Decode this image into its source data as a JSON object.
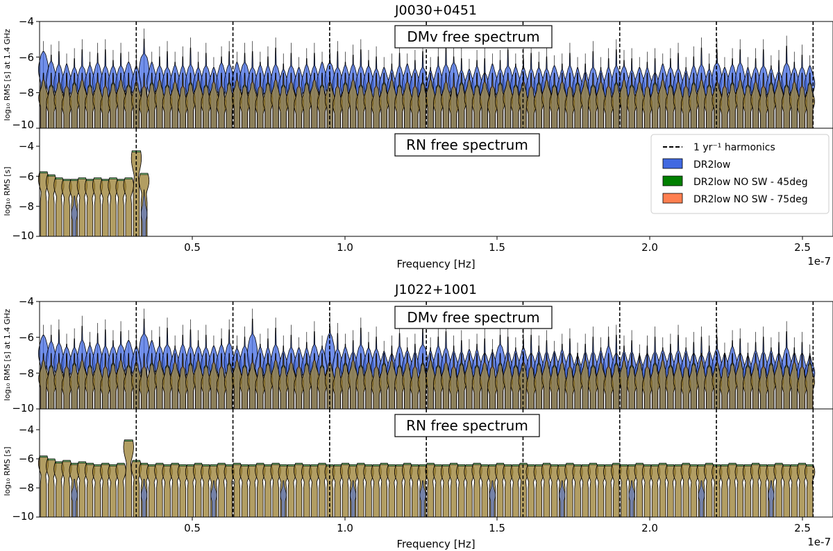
{
  "chart_data": [
    {
      "type": "violin",
      "title": "J0030+0451",
      "xlabel": "Frequency [Hz]",
      "x_offset_text": "1e-7",
      "x_scale": 1e-07,
      "xlim": [
        0.0,
        2.6
      ],
      "xticks": [
        "0.5",
        "1.0",
        "1.5",
        "2.0",
        "2.5"
      ],
      "xtick_values": [
        0.5,
        1.0,
        1.5,
        2.0,
        2.5
      ],
      "harmonics": [
        0.317,
        0.634,
        0.951,
        1.268,
        1.585,
        1.902,
        2.219,
        2.536
      ],
      "legend": {
        "location": "upper right of RN panel",
        "entries": [
          {
            "label": "1 yr⁻¹ harmonics",
            "style": "dashed-line",
            "color": "#000000"
          },
          {
            "label": "DR2low",
            "color": "#4169e1"
          },
          {
            "label": "DR2low NO SW - 45deg",
            "color": "#008000"
          },
          {
            "label": "DR2low NO SW - 75deg",
            "color": "#ff7f50"
          }
        ]
      },
      "panels": [
        {
          "label": "DMv free spectrum",
          "ylabel": "log₁₀ RMS [s] at 1.4 GHz",
          "ylim": [
            -10,
            -4
          ],
          "yticks": [
            "−10",
            "−8",
            "−6",
            "−4"
          ],
          "ytick_values": [
            -10,
            -8,
            -6,
            -4
          ],
          "n_bins": 100,
          "freq_step": 0.02538,
          "series": [
            {
              "name": "DR2low",
              "color": "#4169e1",
              "peak_logrms": [
                -6.7,
                -7.3,
                -7.5,
                -7.5,
                -7.6,
                -7.5,
                -7.5,
                -7.4,
                -7.6,
                -7.5,
                -7.5,
                -7.3,
                -7.6,
                -6.8,
                -7.4,
                -7.5,
                -7.6,
                -7.5,
                -7.6,
                -7.5,
                -7.6,
                -7.5,
                -7.6,
                -7.4,
                -7.5,
                -7.4,
                -7.3,
                -7.6,
                -7.5,
                -7.6,
                -7.5,
                -7.7,
                -7.5,
                -7.6,
                -7.5,
                -7.6,
                -7.4,
                -7.3,
                -7.6,
                -7.5,
                -7.5,
                -7.6,
                -7.5,
                -7.7,
                -7.6,
                -7.8,
                -7.6,
                -7.5,
                -7.7,
                -7.6,
                -7.8,
                -7.6,
                -7.5,
                -7.3,
                -7.8,
                -7.7,
                -7.6,
                -7.9,
                -7.5,
                -7.7,
                -7.5,
                -7.6,
                -7.7,
                -7.8,
                -7.6,
                -7.7,
                -7.5,
                -7.8,
                -7.6,
                -7.7,
                -7.9,
                -7.6,
                -7.8,
                -7.7,
                -7.6,
                -7.5,
                -7.8,
                -7.6,
                -7.7,
                -7.9,
                -7.5,
                -7.6,
                -7.7,
                -7.8,
                -7.6,
                -7.5,
                -7.7,
                -7.3,
                -7.6,
                -7.5,
                -7.4,
                -7.7,
                -7.6,
                -7.5,
                -7.7,
                -7.8,
                -7.4,
                -7.6,
                -7.6,
                -7.5
              ]
            },
            {
              "name": "DR2low NO SW - 45deg",
              "color": "#008000",
              "peak_logrms": "-8.3 typical"
            },
            {
              "name": "DR2low NO SW - 75deg",
              "color": "#ff7f50",
              "peak_logrms": "-8.3 typical"
            }
          ]
        },
        {
          "label": "RN free spectrum",
          "ylabel": "log₁₀ RMS [s]",
          "ylim": [
            -10,
            -4
          ],
          "yticks": [
            "−10",
            "−8",
            "−6",
            "−4"
          ],
          "ytick_values": [
            -10,
            -8,
            -6,
            -4
          ],
          "n_bins": 14,
          "freq_step": 0.02538,
          "series": [
            {
              "name": "all",
              "peak_logrms": [
                -6.2,
                -6.4,
                -6.6,
                -6.7,
                -6.7,
                -6.6,
                -6.7,
                -6.6,
                -6.7,
                -6.6,
                -6.7,
                -6.6,
                -4.8,
                -6.3
              ]
            }
          ]
        }
      ]
    },
    {
      "type": "violin",
      "title": "J1022+1001",
      "xlabel": "Frequency [Hz]",
      "x_offset_text": "1e-7",
      "x_scale": 1e-07,
      "xlim": [
        0.0,
        2.6
      ],
      "xticks": [
        "0.5",
        "1.0",
        "1.5",
        "2.0",
        "2.5"
      ],
      "xtick_values": [
        0.5,
        1.0,
        1.5,
        2.0,
        2.5
      ],
      "harmonics": [
        0.317,
        0.634,
        0.951,
        1.268,
        1.585,
        1.902,
        2.219,
        2.536
      ],
      "panels": [
        {
          "label": "DMv free spectrum",
          "ylabel": "log₁₀ RMS [s] at 1.4 GHz",
          "ylim": [
            -10,
            -4
          ],
          "yticks": [
            "−10",
            "−8",
            "−6",
            "−4"
          ],
          "ytick_values": [
            -10,
            -8,
            -6,
            -4
          ],
          "n_bins": 100,
          "freq_step": 0.02538,
          "series": [
            {
              "name": "DR2low",
              "color": "#4169e1",
              "peak_logrms": [
                -6.9,
                -7.3,
                -7.4,
                -7.5,
                -7.6,
                -7.3,
                -7.5,
                -7.4,
                -7.6,
                -7.5,
                -7.4,
                -7.2,
                -7.6,
                -6.8,
                -7.3,
                -7.5,
                -7.4,
                -7.7,
                -7.5,
                -7.6,
                -7.5,
                -7.6,
                -7.5,
                -7.5,
                -7.4,
                -7.6,
                -7.5,
                -6.9,
                -7.6,
                -7.7,
                -7.5,
                -7.8,
                -7.6,
                -7.6,
                -7.7,
                -7.5,
                -7.6,
                -6.9,
                -7.7,
                -7.6,
                -7.8,
                -7.5,
                -7.6,
                -7.7,
                -7.8,
                -7.9,
                -7.6,
                -7.7,
                -7.9,
                -7.4,
                -7.8,
                -7.6,
                -7.7,
                -7.8,
                -7.9,
                -7.7,
                -7.8,
                -7.9,
                -7.8,
                -7.4,
                -7.9,
                -7.8,
                -7.7,
                -7.9,
                -7.8,
                -7.9,
                -7.8,
                -7.8,
                -7.9,
                -8.0,
                -7.9,
                -7.9,
                -7.8,
                -7.6,
                -7.9,
                -7.8,
                -7.9,
                -8.0,
                -7.9,
                -7.8,
                -7.7,
                -7.9,
                -7.8,
                -7.8,
                -7.9,
                -8.0,
                -7.8,
                -7.7,
                -7.9,
                -7.6,
                -7.9,
                -8.0,
                -7.8,
                -7.9,
                -7.8,
                -7.9,
                -7.7,
                -7.9,
                -8.0,
                -8.0
              ]
            },
            {
              "name": "DR2low NO SW - 45deg",
              "color": "#008000",
              "peak_logrms": "-8.3 typical"
            },
            {
              "name": "DR2low NO SW - 75deg",
              "color": "#ff7f50",
              "peak_logrms": "-8.3 typical"
            }
          ]
        },
        {
          "label": "RN free spectrum",
          "ylabel": "log₁₀ RMS [s]",
          "ylim": [
            -10,
            -4
          ],
          "yticks": [
            "−10",
            "−8",
            "−6",
            "−4"
          ],
          "ytick_values": [
            -10,
            -8,
            -6,
            -4
          ],
          "n_bins": 100,
          "freq_step": 0.02538,
          "series": [
            {
              "name": "all",
              "peak_logrms": [
                -6.3,
                -6.5,
                -6.7,
                -6.6,
                -6.8,
                -6.7,
                -6.8,
                -6.9,
                -6.8,
                -6.9,
                -6.8,
                -5.2,
                -6.6,
                -6.8,
                -6.9,
                -6.8,
                -6.9,
                -6.8,
                -6.9,
                -6.9,
                -6.8,
                -6.9,
                -6.9,
                -6.8,
                -6.9,
                -6.8,
                -6.9,
                -6.9,
                -6.8,
                -6.9,
                -6.8,
                -6.9,
                -6.9,
                -6.8,
                -6.9,
                -6.9,
                -6.8,
                -6.9,
                -6.9,
                -6.8,
                -6.9,
                -6.8,
                -6.9,
                -6.9,
                -6.8,
                -6.9,
                -6.9,
                -6.8,
                -6.9,
                -6.9,
                -6.8,
                -6.9,
                -6.9,
                -6.8,
                -6.9,
                -6.9,
                -6.8,
                -6.9,
                -6.9,
                -6.8,
                -6.9,
                -6.9,
                -6.8,
                -6.9,
                -6.9,
                -6.8,
                -6.9,
                -6.9,
                -6.8,
                -6.9,
                -6.9,
                -6.8,
                -6.9,
                -6.9,
                -6.8,
                -6.9,
                -6.9,
                -6.8,
                -6.9,
                -6.9,
                -6.8,
                -6.9,
                -6.9,
                -6.8,
                -6.9,
                -6.9,
                -6.8,
                -6.9,
                -6.9,
                -6.8,
                -6.9,
                -6.9,
                -6.8,
                -6.9,
                -6.9,
                -6.8,
                -6.9,
                -6.9,
                -6.8,
                -6.9
              ]
            }
          ]
        }
      ]
    }
  ]
}
